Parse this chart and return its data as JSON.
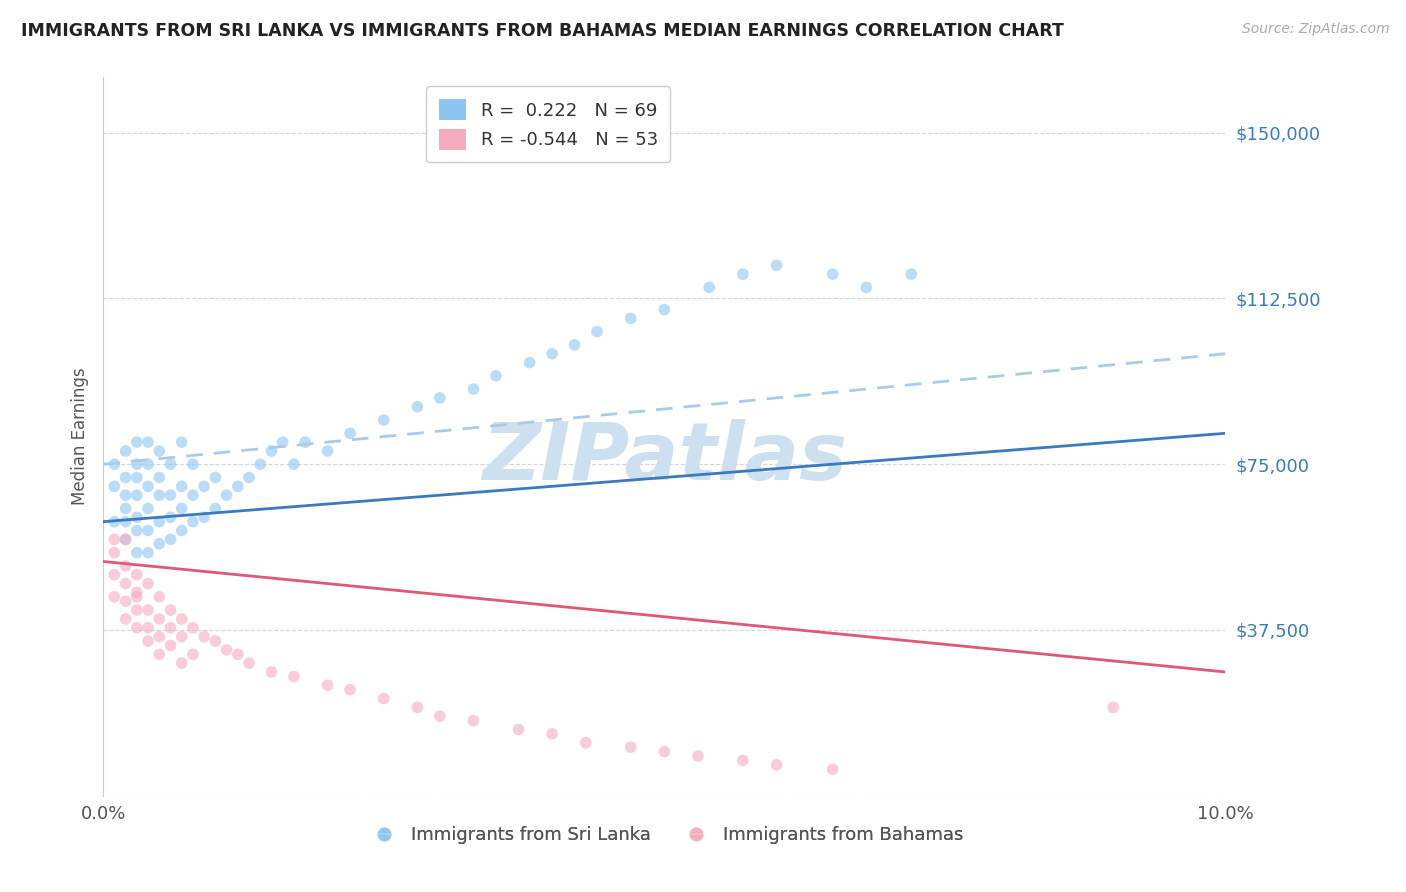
{
  "title": "IMMIGRANTS FROM SRI LANKA VS IMMIGRANTS FROM BAHAMAS MEDIAN EARNINGS CORRELATION CHART",
  "source": "Source: ZipAtlas.com",
  "ylabel": "Median Earnings",
  "xlim": [
    0.0,
    0.1
  ],
  "ylim": [
    0,
    162500
  ],
  "yticks": [
    0,
    37500,
    75000,
    112500,
    150000
  ],
  "ytick_labels": [
    "",
    "$37,500",
    "$75,000",
    "$112,500",
    "$150,000"
  ],
  "legend_entries": [
    {
      "label": "R =  0.222   N = 69",
      "color": "#8ec5f0"
    },
    {
      "label": "R = -0.544   N = 53",
      "color": "#f5abbe"
    }
  ],
  "legend_labels": [
    "Immigrants from Sri Lanka",
    "Immigrants from Bahamas"
  ],
  "blue_color": "#8ec5f0",
  "pink_color": "#f5abbe",
  "blue_line_color": "#3a7abf",
  "pink_line_color": "#e05878",
  "dashed_line_color": "#a8cce8",
  "watermark": "ZIPatlas",
  "watermark_color": "#cde0ef",
  "blue_scatter_x": [
    0.001,
    0.001,
    0.001,
    0.002,
    0.002,
    0.002,
    0.002,
    0.002,
    0.002,
    0.003,
    0.003,
    0.003,
    0.003,
    0.003,
    0.003,
    0.003,
    0.004,
    0.004,
    0.004,
    0.004,
    0.004,
    0.004,
    0.005,
    0.005,
    0.005,
    0.005,
    0.005,
    0.006,
    0.006,
    0.006,
    0.006,
    0.007,
    0.007,
    0.007,
    0.007,
    0.008,
    0.008,
    0.008,
    0.009,
    0.009,
    0.01,
    0.01,
    0.011,
    0.012,
    0.013,
    0.014,
    0.015,
    0.016,
    0.017,
    0.018,
    0.02,
    0.022,
    0.025,
    0.028,
    0.03,
    0.033,
    0.035,
    0.038,
    0.04,
    0.042,
    0.044,
    0.047,
    0.05,
    0.054,
    0.057,
    0.06,
    0.065,
    0.068,
    0.072
  ],
  "blue_scatter_y": [
    62000,
    70000,
    75000,
    58000,
    62000,
    65000,
    68000,
    72000,
    78000,
    55000,
    60000,
    63000,
    68000,
    72000,
    75000,
    80000,
    55000,
    60000,
    65000,
    70000,
    75000,
    80000,
    57000,
    62000,
    68000,
    72000,
    78000,
    58000,
    63000,
    68000,
    75000,
    60000,
    65000,
    70000,
    80000,
    62000,
    68000,
    75000,
    63000,
    70000,
    65000,
    72000,
    68000,
    70000,
    72000,
    75000,
    78000,
    80000,
    75000,
    80000,
    78000,
    82000,
    85000,
    88000,
    90000,
    92000,
    95000,
    98000,
    100000,
    102000,
    105000,
    108000,
    110000,
    115000,
    118000,
    120000,
    118000,
    115000,
    118000
  ],
  "pink_scatter_x": [
    0.001,
    0.001,
    0.001,
    0.001,
    0.002,
    0.002,
    0.002,
    0.002,
    0.002,
    0.003,
    0.003,
    0.003,
    0.003,
    0.003,
    0.004,
    0.004,
    0.004,
    0.004,
    0.005,
    0.005,
    0.005,
    0.005,
    0.006,
    0.006,
    0.006,
    0.007,
    0.007,
    0.007,
    0.008,
    0.008,
    0.009,
    0.01,
    0.011,
    0.012,
    0.013,
    0.015,
    0.017,
    0.02,
    0.022,
    0.025,
    0.028,
    0.03,
    0.033,
    0.037,
    0.04,
    0.043,
    0.047,
    0.05,
    0.053,
    0.057,
    0.06,
    0.065,
    0.09
  ],
  "pink_scatter_y": [
    55000,
    50000,
    45000,
    58000,
    52000,
    48000,
    44000,
    40000,
    58000,
    50000,
    46000,
    42000,
    38000,
    45000,
    48000,
    42000,
    38000,
    35000,
    45000,
    40000,
    36000,
    32000,
    42000,
    38000,
    34000,
    40000,
    36000,
    30000,
    38000,
    32000,
    36000,
    35000,
    33000,
    32000,
    30000,
    28000,
    27000,
    25000,
    24000,
    22000,
    20000,
    18000,
    17000,
    15000,
    14000,
    12000,
    11000,
    10000,
    9000,
    8000,
    7000,
    6000,
    20000
  ],
  "blue_trend": [
    0.0,
    0.1,
    62000,
    82000
  ],
  "pink_trend": [
    0.0,
    0.1,
    53000,
    28000
  ],
  "dashed_trend": [
    0.0,
    0.1,
    75000,
    100000
  ]
}
